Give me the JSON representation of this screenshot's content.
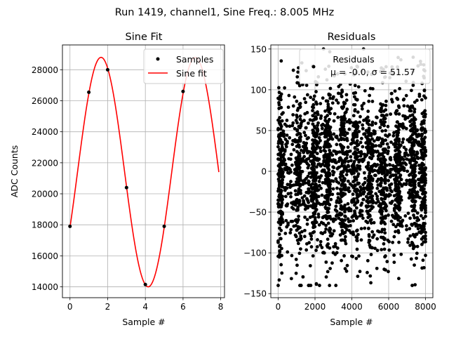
{
  "suptitle": "Run 1419, channel1, Sine Freq.: 8.005 MHz",
  "chart_data": [
    {
      "type": "line",
      "title": "Sine Fit",
      "xlabel": "Sample #",
      "ylabel": "ADC Counts",
      "xlim": [
        -0.4,
        8.2
      ],
      "ylim": [
        13300,
        29600
      ],
      "xticks": [
        "0",
        "2",
        "4",
        "6",
        "8"
      ],
      "yticks": [
        "14000",
        "16000",
        "18000",
        "20000",
        "22000",
        "24000",
        "26000",
        "28000"
      ],
      "grid": true,
      "legend": {
        "position": "top-right",
        "entries": [
          "Samples",
          "Sine fit"
        ]
      },
      "series": [
        {
          "name": "Samples",
          "type": "scatter",
          "color": "#000000",
          "x": [
            0,
            1,
            2,
            3,
            4,
            5,
            6
          ],
          "y": [
            17900,
            26550,
            28000,
            20400,
            14150,
            17900,
            26600
          ]
        },
        {
          "name": "Sine fit",
          "type": "line",
          "color": "#ff0000",
          "fit": {
            "amplitude": 7400,
            "offset": 21400,
            "period_samples": 5.0,
            "peak_at": 1.65,
            "x_range": [
              0,
              7.9
            ]
          }
        }
      ]
    },
    {
      "type": "scatter",
      "title": "Residuals",
      "xlabel": "Sample #",
      "xlim": [
        -400,
        8400
      ],
      "ylim": [
        -155,
        155
      ],
      "xticks": [
        "0",
        "2000",
        "4000",
        "6000",
        "8000"
      ],
      "yticks": [
        "−150",
        "−100",
        "−50",
        "0",
        "50",
        "100",
        "150"
      ],
      "grid": true,
      "legend": {
        "position": "top-right",
        "entries": [
          "Residuals",
          "$\\mu$ = -0.0, $\\sigma$ = 51.57"
        ],
        "rendered": [
          "Residuals",
          "μ = -0.0, σ = 51.57"
        ]
      },
      "series": [
        {
          "name": "Residuals",
          "color": "#000000",
          "x_range": [
            0,
            8000
          ],
          "mean": -0.0,
          "std": 51.57,
          "envelope_min": -140,
          "envelope_max": 150,
          "burst_centers": [
            100,
            1100,
            2000,
            2700,
            3500,
            4200,
            5000,
            5700,
            6500,
            7300,
            7900
          ],
          "burst_width": 280
        }
      ]
    }
  ]
}
